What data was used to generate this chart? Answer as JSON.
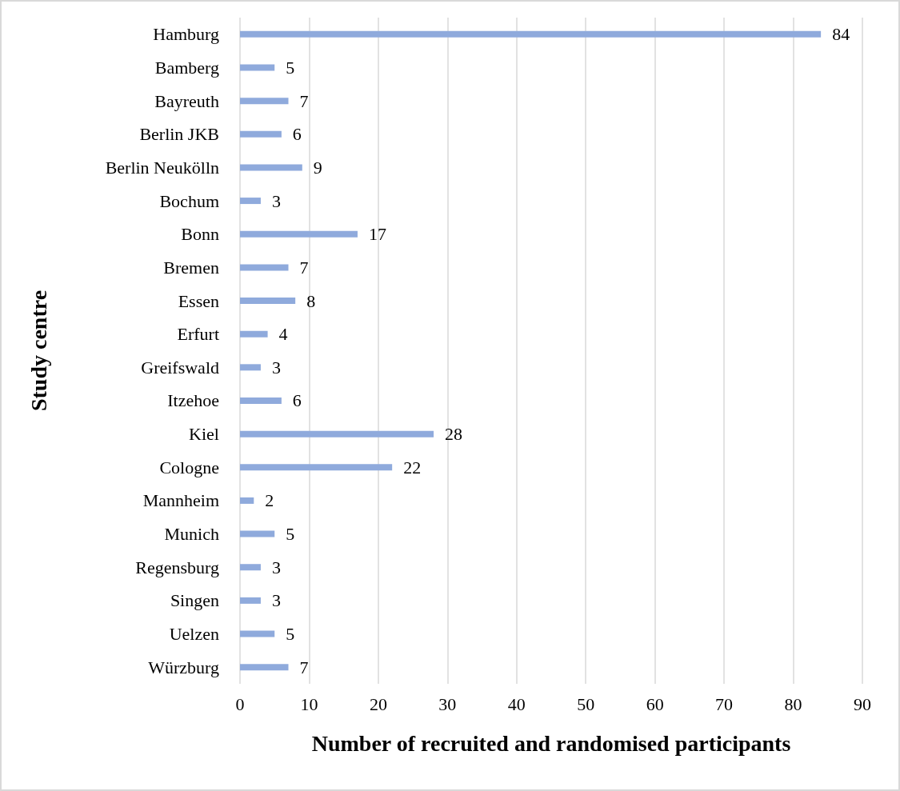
{
  "chart_data": {
    "type": "bar",
    "orientation": "horizontal",
    "xlabel": "Number of recruited and randomised participants",
    "ylabel": "Study centre",
    "categories": [
      "Hamburg",
      "Bamberg",
      "Bayreuth",
      "Berlin JKB",
      "Berlin Neukölln",
      "Bochum",
      "Bonn",
      "Bremen",
      "Essen",
      "Erfurt",
      "Greifswald",
      "Itzehoe",
      "Kiel",
      "Cologne",
      "Mannheim",
      "Munich",
      "Regensburg",
      "Singen",
      "Uelzen",
      "Würzburg"
    ],
    "values": [
      84,
      5,
      7,
      6,
      9,
      3,
      17,
      7,
      8,
      4,
      3,
      6,
      28,
      22,
      2,
      5,
      3,
      3,
      5,
      7
    ],
    "color": "#8faadc",
    "xlim": [
      0,
      90
    ],
    "xticks": [
      0,
      10,
      20,
      30,
      40,
      50,
      60,
      70,
      80,
      90
    ],
    "grid": "x",
    "data_labels": true
  }
}
